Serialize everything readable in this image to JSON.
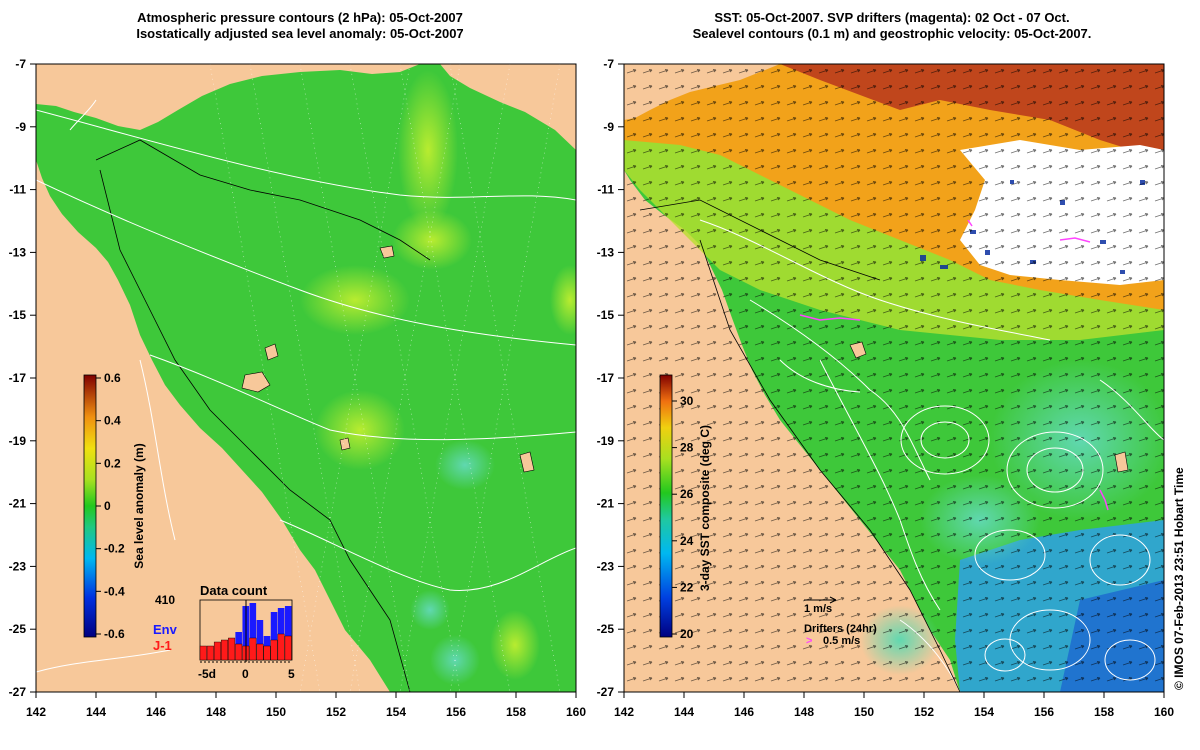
{
  "left_panel": {
    "title_line1": "Atmospheric pressure contours (2 hPa): 05-Oct-2007",
    "title_line2": "Isostatically adjusted sea level anomaly: 05-Oct-2007",
    "colorbar_label": "Sea level anomaly (m)",
    "colorbar_ticks": [
      "0.6",
      "0.4",
      "0.2",
      "0",
      "-0.2",
      "-0.4",
      "-0.6"
    ],
    "histogram_title": "Data count",
    "histogram_max": "410",
    "histogram_legend_env": "Env",
    "histogram_legend_j1": "J-1",
    "histogram_xticks": [
      "-5d",
      "0",
      "5"
    ]
  },
  "right_panel": {
    "title_line1": "SST: 05-Oct-2007. SVP drifters (magenta): 02 Oct - 07 Oct.",
    "title_line2": "Sealevel contours (0.1 m) and geostrophic velocity: 05-Oct-2007.",
    "colorbar_label": "3-day SST composite (deg C)",
    "colorbar_ticks": [
      "30",
      "28",
      "26",
      "24",
      "22",
      "20"
    ],
    "velocity_scale_label": "1 m/s",
    "drifters_label": "Drifters (24hr)",
    "drifters_speed_label": "0.5 m/s"
  },
  "axes": {
    "lat_ticks": [
      "-7",
      "-9",
      "-11",
      "-13",
      "-15",
      "-17",
      "-19",
      "-21",
      "-23",
      "-25",
      "-27"
    ],
    "lon_ticks": [
      "142",
      "144",
      "146",
      "148",
      "150",
      "152",
      "154",
      "156",
      "158",
      "160"
    ]
  },
  "copyright": "© IMOS 07-Feb-2013 23:51 Hobart Time",
  "colors": {
    "land": "#f7c89a",
    "ocean_green": "#44c63a",
    "ocean_light": "#9fe03a",
    "ocean_cyan": "#7fdc9a",
    "sst_orange": "#f2a21a",
    "sst_red": "#c0461c",
    "sst_blue": "#2ea0e6",
    "drifter": "#ff44ff",
    "contour": "#ffffff",
    "env_bar": "#1a1aff",
    "j1_bar": "#ff1a1a"
  }
}
